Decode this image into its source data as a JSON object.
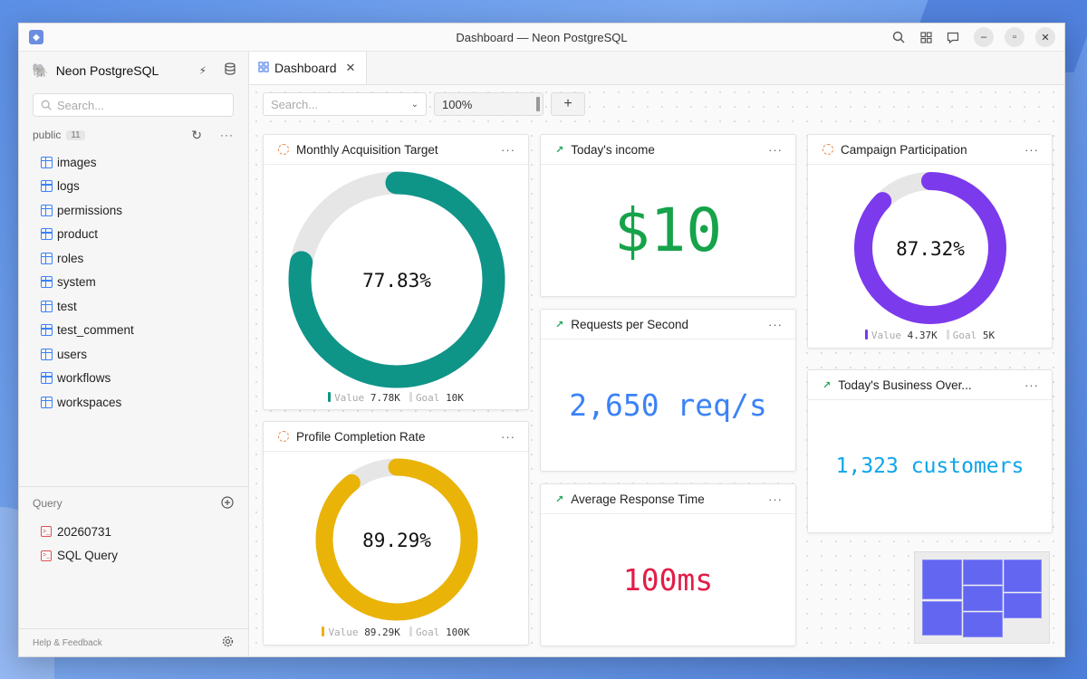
{
  "window": {
    "title": "Dashboard — Neon PostgreSQL"
  },
  "sidebar": {
    "connection_name": "Neon PostgreSQL",
    "search_placeholder": "Search...",
    "schema": {
      "name": "public",
      "count": "11"
    },
    "tables": [
      "images",
      "logs",
      "permissions",
      "product",
      "roles",
      "system",
      "test",
      "test_comment",
      "users",
      "workflows",
      "workspaces"
    ],
    "query_section": {
      "label": "Query",
      "items": [
        "20260731",
        "SQL Query"
      ]
    },
    "footer": {
      "label": "Help & Feedback"
    }
  },
  "tabs": [
    {
      "label": "Dashboard"
    }
  ],
  "toolbar": {
    "search_placeholder": "Search...",
    "zoom": "100%",
    "add_label": "+"
  },
  "colors": {
    "teal": "#0f9488",
    "gold": "#eab308",
    "purple": "#7c3aed",
    "green": "#16a34a",
    "blue": "#3b82f6",
    "red": "#e11d48",
    "cyan": "#0ea5e9"
  },
  "cards": {
    "monthly": {
      "title": "Monthly Acquisition Target",
      "percent": "77.83%",
      "progress": 0.7783,
      "value_label": "Value",
      "value": "7.78K",
      "goal_label": "Goal",
      "goal": "10K"
    },
    "profile": {
      "title": "Profile Completion Rate",
      "percent": "89.29%",
      "progress": 0.8929,
      "value_label": "Value",
      "value": "89.29K",
      "goal_label": "Goal",
      "goal": "100K"
    },
    "income": {
      "title": "Today's income",
      "value": "$10"
    },
    "rps": {
      "title": "Requests per Second",
      "value": "2,650 req/s"
    },
    "art": {
      "title": "Average Response Time",
      "value": "100ms"
    },
    "campaign": {
      "title": "Campaign Participation",
      "percent": "87.32%",
      "progress": 0.8732,
      "value_label": "Value",
      "value": "4.37K",
      "goal_label": "Goal",
      "goal": "5K"
    },
    "business": {
      "title": "Today's Business Over...",
      "value": "1,323 customers"
    }
  }
}
